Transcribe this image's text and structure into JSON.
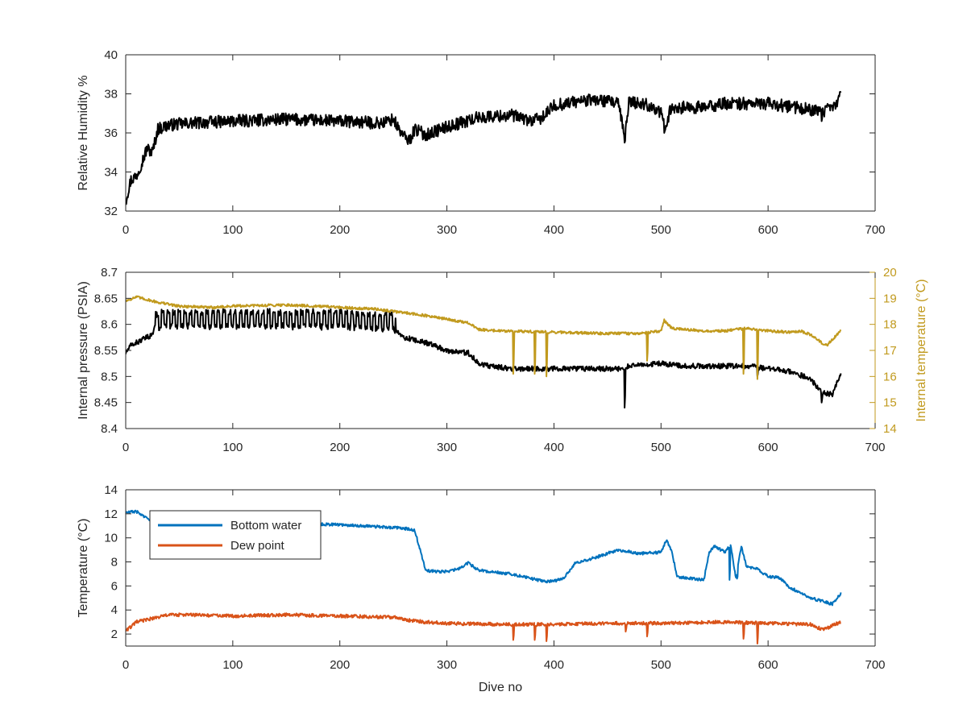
{
  "chart_data": [
    {
      "type": "line",
      "xlim": [
        0,
        700
      ],
      "ylim": [
        32,
        40
      ],
      "x_ticks": [
        0,
        100,
        200,
        300,
        400,
        500,
        600,
        700
      ],
      "y_ticks": [
        32,
        34,
        36,
        38,
        40
      ],
      "xlabel": "",
      "ylabel": "Relative Humidity %",
      "legend": false,
      "grid": false,
      "series": [
        {
          "color": "#000000",
          "x": [
            0,
            2,
            5,
            10,
            15,
            20,
            25,
            30,
            40,
            60,
            100,
            150,
            200,
            240,
            250,
            255,
            260,
            265,
            270,
            280,
            300,
            330,
            360,
            380,
            390,
            400,
            420,
            440,
            460,
            466,
            470,
            490,
            500,
            503,
            510,
            540,
            560,
            600,
            640,
            650,
            665,
            668
          ],
          "y": [
            32.5,
            33.0,
            33.6,
            33.8,
            34.5,
            35.2,
            35.0,
            36.2,
            36.4,
            36.5,
            36.6,
            36.7,
            36.6,
            36.5,
            36.7,
            36.2,
            35.8,
            35.6,
            36.2,
            35.9,
            36.3,
            36.8,
            36.9,
            36.6,
            36.8,
            37.4,
            37.6,
            37.7,
            37.5,
            35.8,
            37.6,
            37.4,
            37.0,
            36.3,
            37.3,
            37.3,
            37.5,
            37.5,
            37.2,
            37.0,
            37.5,
            38.2
          ],
          "noise": 0.32,
          "spikes": [
            [
              466,
              35.5
            ],
            [
              503,
              36.0
            ],
            [
              650,
              36.6
            ]
          ]
        }
      ]
    },
    {
      "type": "line",
      "xlim": [
        0,
        700
      ],
      "ylim": [
        8.4,
        8.7
      ],
      "y2lim": [
        14,
        20
      ],
      "x_ticks": [
        0,
        100,
        200,
        300,
        400,
        500,
        600,
        700
      ],
      "y_ticks": [
        8.4,
        8.45,
        8.5,
        8.55,
        8.6,
        8.65,
        8.7
      ],
      "y_tick_labels": [
        "8.4",
        "8.45",
        "8.5",
        "8.55",
        "8.6",
        "8.65",
        "8.7"
      ],
      "y2_ticks": [
        14,
        15,
        16,
        17,
        18,
        19,
        20
      ],
      "xlabel": "",
      "ylabel": "Internal pressure (PSIA)",
      "y2label": "Internal temperature (°C)",
      "y2color": "#C19A1E",
      "legend": false,
      "grid": false,
      "series": [
        {
          "axis": "left",
          "color": "#000000",
          "x": [
            0,
            5,
            15,
            25,
            28,
            35,
            60,
            100,
            150,
            200,
            240,
            250,
            253,
            260,
            280,
            300,
            320,
            330,
            340,
            360,
            400,
            440,
            466,
            470,
            500,
            520,
            580,
            600,
            620,
            640,
            650,
            660,
            668
          ],
          "y": [
            8.545,
            8.56,
            8.57,
            8.58,
            8.605,
            8.61,
            8.61,
            8.61,
            8.61,
            8.61,
            8.605,
            8.605,
            8.585,
            8.575,
            8.565,
            8.55,
            8.545,
            8.525,
            8.52,
            8.515,
            8.515,
            8.515,
            8.515,
            8.52,
            8.525,
            8.52,
            8.52,
            8.515,
            8.51,
            8.495,
            8.47,
            8.465,
            8.505
          ],
          "noise": 0.005,
          "osc": {
            "from": 28,
            "to": 252,
            "period": 5.2,
            "amp": 0.016
          },
          "spikes": [
            [
              466,
              8.44
            ],
            [
              650,
              8.45
            ],
            [
              590,
              8.5
            ]
          ]
        },
        {
          "axis": "right",
          "color": "#C19A1E",
          "x": [
            0,
            10,
            30,
            50,
            80,
            100,
            150,
            200,
            230,
            250,
            270,
            300,
            320,
            330,
            350,
            400,
            450,
            480,
            500,
            503,
            510,
            540,
            560,
            580,
            600,
            620,
            630,
            640,
            650,
            655,
            668
          ],
          "y": [
            18.9,
            19.05,
            18.85,
            18.7,
            18.65,
            18.7,
            18.75,
            18.65,
            18.6,
            18.5,
            18.4,
            18.2,
            18.05,
            17.8,
            17.75,
            17.7,
            17.65,
            17.65,
            17.75,
            18.15,
            17.85,
            17.75,
            17.75,
            17.85,
            17.75,
            17.7,
            17.75,
            17.6,
            17.3,
            17.2,
            17.75
          ],
          "noise": 0.05,
          "spikes": [
            [
              362,
              16.1
            ],
            [
              382,
              16.1
            ],
            [
              393,
              16.0
            ],
            [
              487,
              16.6
            ],
            [
              577,
              16.1
            ],
            [
              590,
              15.9
            ]
          ]
        }
      ]
    },
    {
      "type": "line",
      "xlim": [
        0,
        700
      ],
      "ylim": [
        1,
        14
      ],
      "x_ticks": [
        0,
        100,
        200,
        300,
        400,
        500,
        600,
        700
      ],
      "y_ticks": [
        2,
        4,
        6,
        8,
        10,
        12,
        14
      ],
      "xlabel": "Dive no",
      "ylabel": "Temperature (°C)",
      "legend": true,
      "legend_position": "top-left",
      "grid": false,
      "series": [
        {
          "name": "Bottom water",
          "color": "#0072BD",
          "x": [
            0,
            10,
            20,
            30,
            60,
            100,
            150,
            200,
            240,
            260,
            270,
            275,
            280,
            290,
            300,
            310,
            320,
            330,
            360,
            390,
            400,
            410,
            420,
            440,
            460,
            480,
            500,
            505,
            510,
            515,
            520,
            540,
            545,
            550,
            560,
            565,
            570,
            575,
            580,
            590,
            600,
            610,
            620,
            640,
            660,
            668
          ],
          "y": [
            12.1,
            12.2,
            11.6,
            11.4,
            11.3,
            11.3,
            11.2,
            11.1,
            10.9,
            10.8,
            10.6,
            9.0,
            7.3,
            7.2,
            7.2,
            7.4,
            7.9,
            7.3,
            7.0,
            6.4,
            6.4,
            6.7,
            7.9,
            8.4,
            9.0,
            8.7,
            8.8,
            9.8,
            8.9,
            6.8,
            6.7,
            6.5,
            8.8,
            9.3,
            8.8,
            9.5,
            6.6,
            9.3,
            7.6,
            7.4,
            6.8,
            6.7,
            5.9,
            5.0,
            4.5,
            5.4
          ],
          "noise": 0.12,
          "spikes": [
            [
              564,
              6.5
            ],
            [
              571,
              6.6
            ]
          ]
        },
        {
          "name": "Dew point",
          "color": "#D95319",
          "x": [
            0,
            5,
            10,
            20,
            30,
            40,
            60,
            100,
            150,
            200,
            250,
            260,
            270,
            280,
            300,
            350,
            400,
            450,
            500,
            550,
            600,
            640,
            650,
            655,
            660,
            668
          ],
          "y": [
            2.3,
            2.6,
            3.0,
            3.2,
            3.4,
            3.6,
            3.6,
            3.5,
            3.6,
            3.5,
            3.4,
            3.2,
            3.1,
            3.0,
            2.9,
            2.8,
            2.8,
            2.9,
            2.9,
            3.0,
            2.9,
            2.8,
            2.4,
            2.5,
            2.7,
            3.0
          ],
          "noise": 0.14,
          "spikes": [
            [
              362,
              1.5
            ],
            [
              382,
              1.5
            ],
            [
              393,
              1.4
            ],
            [
              467,
              2.2
            ],
            [
              487,
              1.8
            ],
            [
              577,
              1.6
            ],
            [
              590,
              1.2
            ]
          ]
        }
      ]
    }
  ]
}
